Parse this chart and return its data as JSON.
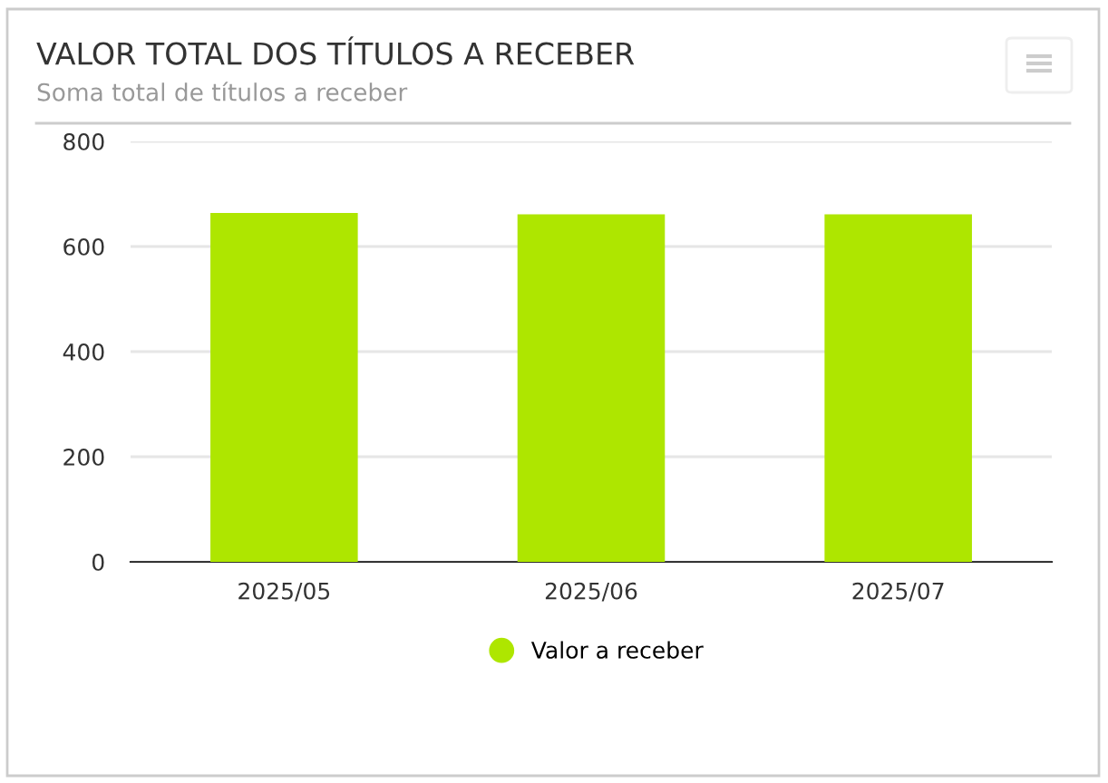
{
  "chart_data": {
    "type": "bar",
    "title": "VALOR TOTAL DOS TÍTULOS A RECEBER",
    "subtitle": "Soma total de títulos a receber",
    "categories": [
      "2025/05",
      "2025/06",
      "2025/07"
    ],
    "series": [
      {
        "name": "Valor a receber",
        "color": "#aee600",
        "values": [
          664,
          661,
          661
        ]
      }
    ],
    "ylim": [
      0,
      800
    ],
    "yticks": [
      0,
      200,
      400,
      600,
      800
    ],
    "grid": "y",
    "legend": "bottom"
  }
}
